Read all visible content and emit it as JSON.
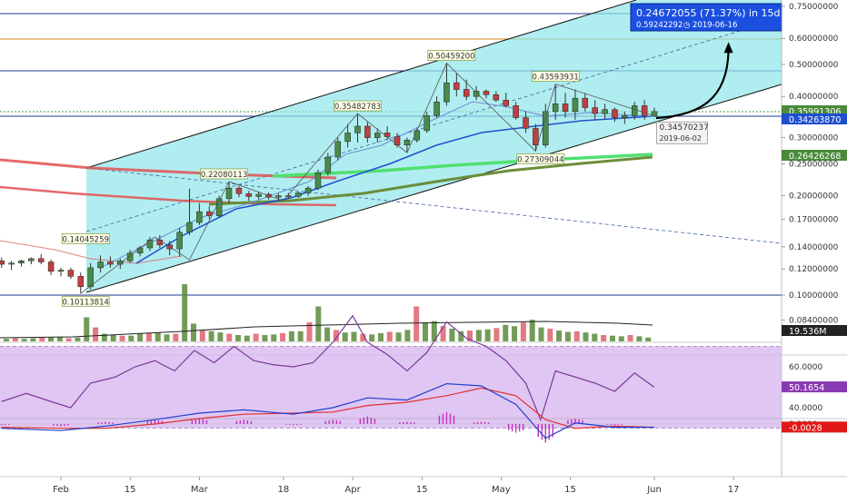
{
  "chart_data": {
    "type": "candlestick",
    "price_axis": {
      "scale": "log",
      "ticks": [
        "0.75000000",
        "0.60000000",
        "0.50000000",
        "0.40000000",
        "0.30000000",
        "0.25000000",
        "0.20000000",
        "0.17000000",
        "0.14000000",
        "0.12000000",
        "0.10000000",
        "0.08400000"
      ],
      "values": [
        0.75,
        0.6,
        0.5,
        0.4,
        0.3,
        0.25,
        0.2,
        0.17,
        0.14,
        0.12,
        0.1,
        0.084
      ]
    },
    "x_axis": {
      "ticks": [
        "Feb",
        "15",
        "Mar",
        "18",
        "Apr",
        "15",
        "May",
        "15",
        "Jun",
        "17"
      ],
      "dates": [
        "2019-02-01",
        "2019-02-15",
        "2019-03-01",
        "2019-03-18",
        "2019-04-01",
        "2019-04-15",
        "2019-05-01",
        "2019-05-15",
        "2019-06-01",
        "2019-06-17"
      ]
    },
    "price_labels": [
      {
        "label": "0.35991306",
        "color": "#4a8a3a"
      },
      {
        "label": "0.34263870",
        "color": "#1f4fd1"
      },
      {
        "label": "0.26426268",
        "color": "#4a8a3a"
      }
    ],
    "annotations": [
      {
        "label": "0.50459200",
        "date": "2019-04-21",
        "price": 0.5046
      },
      {
        "label": "0.43593931",
        "date": "2019-05-12",
        "price": 0.436
      },
      {
        "label": "0.35482783",
        "date": "2019-04-02",
        "price": 0.355
      },
      {
        "label": "0.22080113",
        "date": "2019-03-06",
        "price": 0.2208
      },
      {
        "label": "0.14045259",
        "date": "2019-02-06",
        "price": 0.1405
      },
      {
        "label": "0.10113814",
        "date": "2019-02-06",
        "price": 0.1011
      },
      {
        "label": "0.27309044",
        "date": "2019-05-09",
        "price": 0.2731
      },
      {
        "label": "0.34570237",
        "sublabel": "2019-06-02",
        "date": "2019-06-02",
        "price": 0.3457
      }
    ],
    "projection_box": {
      "line1": "0.24672055 (71.37%) in 15d",
      "line2": "0.59242292",
      "line2_date": "2019-06-16",
      "target_price": 0.5924,
      "target_date": "2019-06-16"
    },
    "candles": [
      {
        "date": "2019-01-20",
        "o": 0.127,
        "h": 0.13,
        "l": 0.121,
        "c": 0.124
      },
      {
        "date": "2019-01-22",
        "o": 0.124,
        "h": 0.127,
        "l": 0.119,
        "c": 0.125
      },
      {
        "date": "2019-01-24",
        "o": 0.125,
        "h": 0.128,
        "l": 0.122,
        "c": 0.127
      },
      {
        "date": "2019-01-26",
        "o": 0.127,
        "h": 0.13,
        "l": 0.124,
        "c": 0.129
      },
      {
        "date": "2019-01-28",
        "o": 0.129,
        "h": 0.133,
        "l": 0.124,
        "c": 0.126
      },
      {
        "date": "2019-01-30",
        "o": 0.126,
        "h": 0.128,
        "l": 0.115,
        "c": 0.118
      },
      {
        "date": "2019-02-01",
        "o": 0.118,
        "h": 0.121,
        "l": 0.114,
        "c": 0.119
      },
      {
        "date": "2019-02-03",
        "o": 0.119,
        "h": 0.121,
        "l": 0.112,
        "c": 0.114
      },
      {
        "date": "2019-02-05",
        "o": 0.114,
        "h": 0.117,
        "l": 0.101,
        "c": 0.106
      },
      {
        "date": "2019-02-07",
        "o": 0.106,
        "h": 0.125,
        "l": 0.104,
        "c": 0.121
      },
      {
        "date": "2019-02-09",
        "o": 0.121,
        "h": 0.132,
        "l": 0.117,
        "c": 0.126
      },
      {
        "date": "2019-02-11",
        "o": 0.126,
        "h": 0.131,
        "l": 0.121,
        "c": 0.124
      },
      {
        "date": "2019-02-13",
        "o": 0.124,
        "h": 0.129,
        "l": 0.12,
        "c": 0.127
      },
      {
        "date": "2019-02-15",
        "o": 0.127,
        "h": 0.137,
        "l": 0.125,
        "c": 0.134
      },
      {
        "date": "2019-02-17",
        "o": 0.134,
        "h": 0.141,
        "l": 0.131,
        "c": 0.139
      },
      {
        "date": "2019-02-19",
        "o": 0.139,
        "h": 0.15,
        "l": 0.136,
        "c": 0.147
      },
      {
        "date": "2019-02-21",
        "o": 0.147,
        "h": 0.152,
        "l": 0.139,
        "c": 0.142
      },
      {
        "date": "2019-02-23",
        "o": 0.142,
        "h": 0.146,
        "l": 0.132,
        "c": 0.138
      },
      {
        "date": "2019-02-25",
        "o": 0.138,
        "h": 0.16,
        "l": 0.131,
        "c": 0.155
      },
      {
        "date": "2019-02-27",
        "o": 0.155,
        "h": 0.21,
        "l": 0.152,
        "c": 0.166
      },
      {
        "date": "2019-03-01",
        "o": 0.166,
        "h": 0.19,
        "l": 0.163,
        "c": 0.179
      },
      {
        "date": "2019-03-03",
        "o": 0.179,
        "h": 0.186,
        "l": 0.17,
        "c": 0.174
      },
      {
        "date": "2019-03-05",
        "o": 0.174,
        "h": 0.2,
        "l": 0.172,
        "c": 0.196
      },
      {
        "date": "2019-03-07",
        "o": 0.196,
        "h": 0.2208,
        "l": 0.19,
        "c": 0.211
      },
      {
        "date": "2019-03-09",
        "o": 0.211,
        "h": 0.214,
        "l": 0.198,
        "c": 0.203
      },
      {
        "date": "2019-03-11",
        "o": 0.203,
        "h": 0.207,
        "l": 0.193,
        "c": 0.199
      },
      {
        "date": "2019-03-13",
        "o": 0.199,
        "h": 0.206,
        "l": 0.195,
        "c": 0.202
      },
      {
        "date": "2019-03-15",
        "o": 0.202,
        "h": 0.205,
        "l": 0.195,
        "c": 0.198
      },
      {
        "date": "2019-03-17",
        "o": 0.198,
        "h": 0.203,
        "l": 0.194,
        "c": 0.2
      },
      {
        "date": "2019-03-19",
        "o": 0.2,
        "h": 0.204,
        "l": 0.196,
        "c": 0.199
      },
      {
        "date": "2019-03-21",
        "o": 0.199,
        "h": 0.206,
        "l": 0.197,
        "c": 0.204
      },
      {
        "date": "2019-03-23",
        "o": 0.204,
        "h": 0.214,
        "l": 0.2,
        "c": 0.211
      },
      {
        "date": "2019-03-25",
        "o": 0.211,
        "h": 0.24,
        "l": 0.208,
        "c": 0.235
      },
      {
        "date": "2019-03-27",
        "o": 0.235,
        "h": 0.27,
        "l": 0.23,
        "c": 0.262
      },
      {
        "date": "2019-03-29",
        "o": 0.262,
        "h": 0.3,
        "l": 0.256,
        "c": 0.292
      },
      {
        "date": "2019-03-31",
        "o": 0.292,
        "h": 0.33,
        "l": 0.28,
        "c": 0.31
      },
      {
        "date": "2019-04-02",
        "o": 0.31,
        "h": 0.355,
        "l": 0.29,
        "c": 0.325
      },
      {
        "date": "2019-04-04",
        "o": 0.325,
        "h": 0.335,
        "l": 0.29,
        "c": 0.3
      },
      {
        "date": "2019-04-06",
        "o": 0.3,
        "h": 0.32,
        "l": 0.29,
        "c": 0.31
      },
      {
        "date": "2019-04-08",
        "o": 0.31,
        "h": 0.325,
        "l": 0.295,
        "c": 0.302
      },
      {
        "date": "2019-04-10",
        "o": 0.302,
        "h": 0.31,
        "l": 0.28,
        "c": 0.285
      },
      {
        "date": "2019-04-12",
        "o": 0.285,
        "h": 0.3,
        "l": 0.27,
        "c": 0.295
      },
      {
        "date": "2019-04-14",
        "o": 0.295,
        "h": 0.32,
        "l": 0.29,
        "c": 0.315
      },
      {
        "date": "2019-04-16",
        "o": 0.315,
        "h": 0.36,
        "l": 0.31,
        "c": 0.35
      },
      {
        "date": "2019-04-18",
        "o": 0.35,
        "h": 0.4,
        "l": 0.345,
        "c": 0.385
      },
      {
        "date": "2019-04-20",
        "o": 0.385,
        "h": 0.5046,
        "l": 0.375,
        "c": 0.44
      },
      {
        "date": "2019-04-22",
        "o": 0.44,
        "h": 0.47,
        "l": 0.4,
        "c": 0.42
      },
      {
        "date": "2019-04-24",
        "o": 0.42,
        "h": 0.45,
        "l": 0.39,
        "c": 0.4
      },
      {
        "date": "2019-04-26",
        "o": 0.4,
        "h": 0.43,
        "l": 0.39,
        "c": 0.415
      },
      {
        "date": "2019-04-28",
        "o": 0.415,
        "h": 0.42,
        "l": 0.395,
        "c": 0.405
      },
      {
        "date": "2019-04-30",
        "o": 0.405,
        "h": 0.415,
        "l": 0.385,
        "c": 0.39
      },
      {
        "date": "2019-05-02",
        "o": 0.39,
        "h": 0.41,
        "l": 0.37,
        "c": 0.375
      },
      {
        "date": "2019-05-04",
        "o": 0.375,
        "h": 0.385,
        "l": 0.34,
        "c": 0.345
      },
      {
        "date": "2019-05-06",
        "o": 0.345,
        "h": 0.36,
        "l": 0.31,
        "c": 0.32
      },
      {
        "date": "2019-05-08",
        "o": 0.32,
        "h": 0.33,
        "l": 0.2731,
        "c": 0.285
      },
      {
        "date": "2019-05-10",
        "o": 0.285,
        "h": 0.38,
        "l": 0.28,
        "c": 0.36
      },
      {
        "date": "2019-05-12",
        "o": 0.36,
        "h": 0.436,
        "l": 0.34,
        "c": 0.38
      },
      {
        "date": "2019-05-14",
        "o": 0.38,
        "h": 0.41,
        "l": 0.345,
        "c": 0.36
      },
      {
        "date": "2019-05-16",
        "o": 0.36,
        "h": 0.42,
        "l": 0.34,
        "c": 0.395
      },
      {
        "date": "2019-05-18",
        "o": 0.395,
        "h": 0.41,
        "l": 0.36,
        "c": 0.37
      },
      {
        "date": "2019-05-20",
        "o": 0.37,
        "h": 0.39,
        "l": 0.34,
        "c": 0.355
      },
      {
        "date": "2019-05-22",
        "o": 0.355,
        "h": 0.38,
        "l": 0.34,
        "c": 0.365
      },
      {
        "date": "2019-05-24",
        "o": 0.365,
        "h": 0.37,
        "l": 0.335,
        "c": 0.345
      },
      {
        "date": "2019-05-26",
        "o": 0.345,
        "h": 0.36,
        "l": 0.33,
        "c": 0.35
      },
      {
        "date": "2019-05-28",
        "o": 0.35,
        "h": 0.385,
        "l": 0.34,
        "c": 0.375
      },
      {
        "date": "2019-05-30",
        "o": 0.375,
        "h": 0.39,
        "l": 0.34,
        "c": 0.35
      },
      {
        "date": "2019-06-01",
        "o": 0.35,
        "h": 0.37,
        "l": 0.3457,
        "c": 0.36
      }
    ],
    "volume_label": "19.536M",
    "rsi_axis": {
      "ticks": [
        "60.0000",
        "40.0000"
      ],
      "values": [
        60,
        40
      ]
    },
    "rsi_label": "50.1654",
    "rsi": [
      {
        "date": "2019-01-20",
        "v": 43
      },
      {
        "date": "2019-01-25",
        "v": 47
      },
      {
        "date": "2019-01-30",
        "v": 43
      },
      {
        "date": "2019-02-03",
        "v": 40
      },
      {
        "date": "2019-02-07",
        "v": 52
      },
      {
        "date": "2019-02-12",
        "v": 55
      },
      {
        "date": "2019-02-16",
        "v": 60
      },
      {
        "date": "2019-02-20",
        "v": 63
      },
      {
        "date": "2019-02-24",
        "v": 58
      },
      {
        "date": "2019-02-28",
        "v": 68
      },
      {
        "date": "2019-03-04",
        "v": 62
      },
      {
        "date": "2019-03-08",
        "v": 70
      },
      {
        "date": "2019-03-12",
        "v": 63
      },
      {
        "date": "2019-03-16",
        "v": 61
      },
      {
        "date": "2019-03-20",
        "v": 60
      },
      {
        "date": "2019-03-24",
        "v": 62
      },
      {
        "date": "2019-03-28",
        "v": 72
      },
      {
        "date": "2019-04-01",
        "v": 85
      },
      {
        "date": "2019-04-04",
        "v": 72
      },
      {
        "date": "2019-04-08",
        "v": 66
      },
      {
        "date": "2019-04-12",
        "v": 58
      },
      {
        "date": "2019-04-16",
        "v": 67
      },
      {
        "date": "2019-04-20",
        "v": 82
      },
      {
        "date": "2019-04-24",
        "v": 74
      },
      {
        "date": "2019-04-28",
        "v": 70
      },
      {
        "date": "2019-05-02",
        "v": 63
      },
      {
        "date": "2019-05-06",
        "v": 52
      },
      {
        "date": "2019-05-09",
        "v": 34
      },
      {
        "date": "2019-05-12",
        "v": 58
      },
      {
        "date": "2019-05-16",
        "v": 55
      },
      {
        "date": "2019-05-20",
        "v": 52
      },
      {
        "date": "2019-05-24",
        "v": 48
      },
      {
        "date": "2019-05-28",
        "v": 57
      },
      {
        "date": "2019-06-01",
        "v": 50
      }
    ],
    "macd_axis": {
      "ticks": [
        "0.0000"
      ],
      "values": [
        0
      ]
    },
    "macd_label": "-0.0028",
    "macd": [
      {
        "date": "2019-01-20",
        "m": -0.004,
        "s": -0.003
      },
      {
        "date": "2019-02-01",
        "m": -0.006,
        "s": -0.004
      },
      {
        "date": "2019-02-10",
        "m": -0.002,
        "s": -0.004
      },
      {
        "date": "2019-02-20",
        "m": 0.004,
        "s": 0.0
      },
      {
        "date": "2019-03-01",
        "m": 0.01,
        "s": 0.005
      },
      {
        "date": "2019-03-10",
        "m": 0.013,
        "s": 0.009
      },
      {
        "date": "2019-03-20",
        "m": 0.009,
        "s": 0.01
      },
      {
        "date": "2019-03-28",
        "m": 0.015,
        "s": 0.011
      },
      {
        "date": "2019-04-04",
        "m": 0.024,
        "s": 0.017
      },
      {
        "date": "2019-04-12",
        "m": 0.022,
        "s": 0.02
      },
      {
        "date": "2019-04-20",
        "m": 0.037,
        "s": 0.026
      },
      {
        "date": "2019-04-27",
        "m": 0.035,
        "s": 0.033
      },
      {
        "date": "2019-05-04",
        "m": 0.018,
        "s": 0.026
      },
      {
        "date": "2019-05-10",
        "m": -0.013,
        "s": 0.004
      },
      {
        "date": "2019-05-16",
        "m": 0.001,
        "s": -0.004
      },
      {
        "date": "2019-05-24",
        "m": -0.003,
        "s": -0.002
      },
      {
        "date": "2019-06-01",
        "m": -0.003,
        "s": -0.003
      }
    ]
  }
}
